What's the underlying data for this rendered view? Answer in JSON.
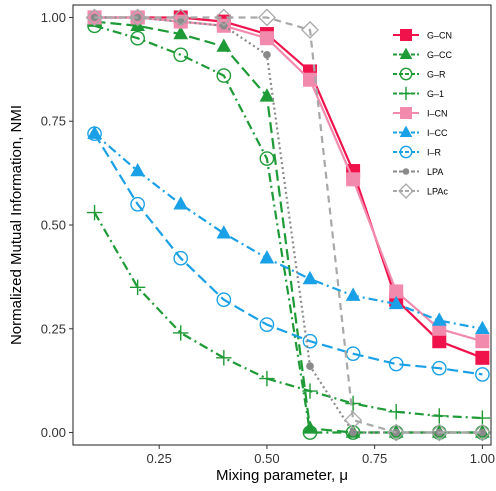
{
  "chart_data": {
    "type": "line",
    "xlabel": "Mixing parameter,  μ",
    "ylabel": "Normalized Mutual Information, NMI",
    "xlim": [
      0.05,
      1.02
    ],
    "ylim": [
      -0.03,
      1.03
    ],
    "xticks": [
      0.25,
      0.5,
      0.75,
      1.0
    ],
    "xtick_labels": [
      "0.25",
      "0.50",
      "0.75",
      "1.00"
    ],
    "yticks": [
      0.0,
      0.25,
      0.5,
      0.75,
      1.0
    ],
    "ytick_labels": [
      "0.00",
      "0.25",
      "0.50",
      "0.75",
      "1.00"
    ],
    "grid": false,
    "legend_position": "top-right",
    "x": [
      0.1,
      0.2,
      0.3,
      0.4,
      0.5,
      0.6,
      0.7,
      0.8,
      0.9,
      1.0
    ],
    "series": [
      {
        "name": "G–CN",
        "color": "#f0124b",
        "marker": "square",
        "dash": "solid",
        "values": [
          1.0,
          1.0,
          1.0,
          0.99,
          0.96,
          0.87,
          0.63,
          0.32,
          0.22,
          0.18
        ]
      },
      {
        "name": "G–CC",
        "color": "#1e9a36",
        "marker": "triangle",
        "dash": "longdash",
        "values": [
          0.99,
          0.98,
          0.96,
          0.93,
          0.81,
          0.01,
          0.0,
          0.0,
          0.0,
          0.0
        ]
      },
      {
        "name": "G–R",
        "color": "#1e9a36",
        "marker": "circle-open",
        "dash": "dashdot",
        "values": [
          0.98,
          0.95,
          0.91,
          0.86,
          0.66,
          0.0,
          0.0,
          0.0,
          0.0,
          0.0
        ]
      },
      {
        "name": "G–1",
        "color": "#1e9a36",
        "marker": "plus",
        "dash": "dashdot",
        "values": [
          0.53,
          0.35,
          0.24,
          0.18,
          0.13,
          0.1,
          0.07,
          0.05,
          0.04,
          0.035
        ]
      },
      {
        "name": "I–CN",
        "color": "#f28aad",
        "marker": "square",
        "dash": "solid",
        "values": [
          1.0,
          1.0,
          0.99,
          0.98,
          0.95,
          0.85,
          0.61,
          0.34,
          0.25,
          0.22
        ]
      },
      {
        "name": "I–CC",
        "color": "#1aa0e6",
        "marker": "triangle",
        "dash": "dashdot",
        "values": [
          0.72,
          0.63,
          0.55,
          0.48,
          0.42,
          0.37,
          0.33,
          0.31,
          0.27,
          0.25
        ]
      },
      {
        "name": "I–R",
        "color": "#1aa0e6",
        "marker": "circle-open",
        "dash": "longdash",
        "values": [
          0.72,
          0.55,
          0.42,
          0.32,
          0.26,
          0.22,
          0.19,
          0.165,
          0.155,
          0.14
        ]
      },
      {
        "name": "LPA",
        "color": "#8a8a8a",
        "marker": "dot",
        "dash": "dotted",
        "values": [
          1.0,
          1.0,
          0.99,
          0.98,
          0.91,
          0.16,
          0.0,
          0.0,
          0.0,
          0.0
        ]
      },
      {
        "name": "LPAc",
        "color": "#a8a8a8",
        "marker": "diamond-open",
        "dash": "dashed",
        "values": [
          1.0,
          1.0,
          1.0,
          1.0,
          1.0,
          0.97,
          0.03,
          0.0,
          0.0,
          0.0
        ]
      }
    ]
  }
}
